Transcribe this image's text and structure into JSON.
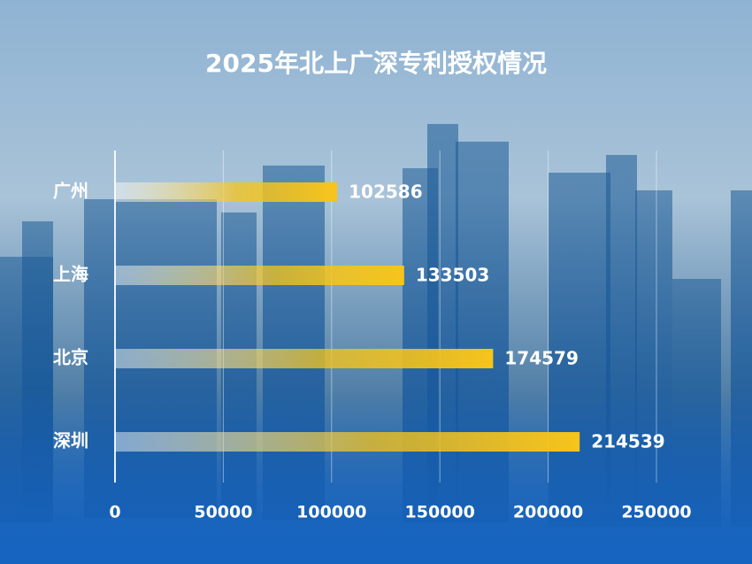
{
  "chart_data": {
    "type": "bar",
    "orientation": "horizontal",
    "title": "2025年北上广深专利授权情况",
    "categories": [
      "广州",
      "上海",
      "北京",
      "深圳"
    ],
    "values": [
      102586,
      133503,
      174579,
      214539
    ],
    "color": "#f7c41a",
    "xlim": [
      0,
      250000
    ],
    "xticks": [
      0,
      50000,
      100000,
      150000,
      200000,
      250000
    ],
    "grid": true
  }
}
